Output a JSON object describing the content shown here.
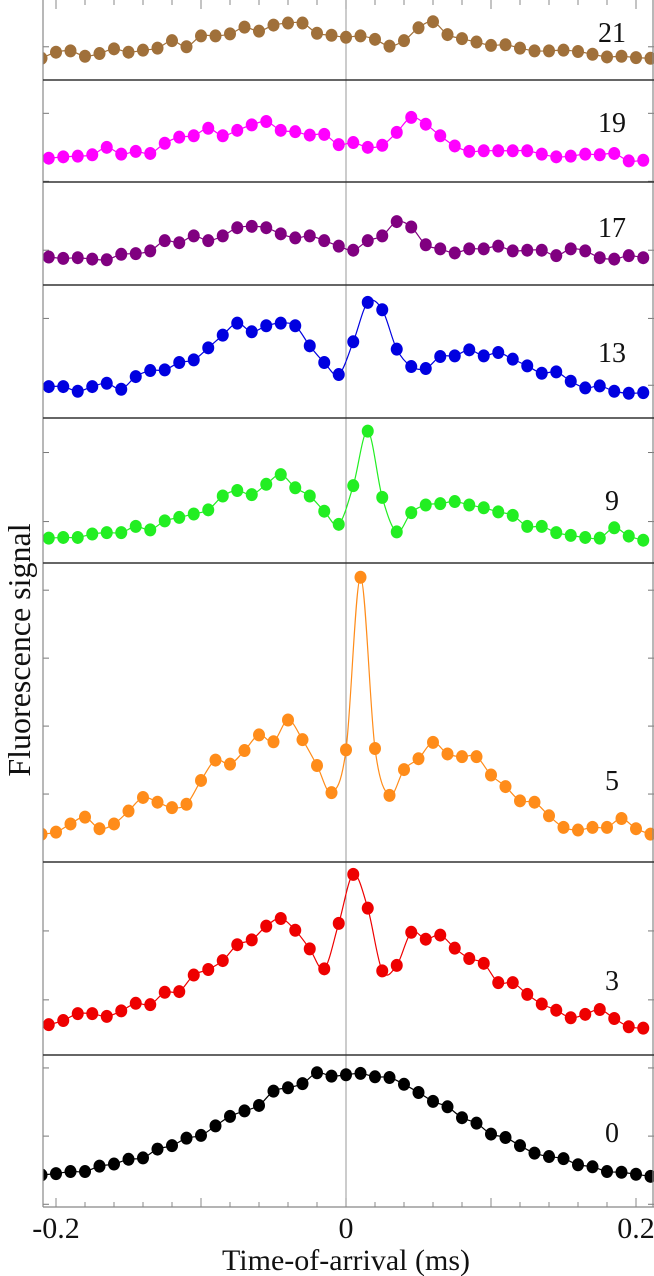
{
  "chart_data": {
    "type": "scatter",
    "xlabel": "Time-of-arrival (ms)",
    "ylabel": "Fluorescence signal",
    "xlim": [
      -0.209,
      0.212
    ],
    "xticks": [
      -0.2,
      0,
      0.2
    ],
    "xticklabels": [
      "-0.2",
      "0",
      "0.2"
    ],
    "x_minor_tick_step": 0.02,
    "zero_line": true,
    "series": [
      {
        "label": "21",
        "color": "#a0703a",
        "ylim": [
          0.51,
          1.69
        ],
        "yticks": [
          1
        ],
        "x": [
          -0.21,
          -0.2,
          -0.19,
          -0.18,
          -0.17,
          -0.16,
          -0.15,
          -0.14,
          -0.13,
          -0.12,
          -0.11,
          -0.1,
          -0.09,
          -0.08,
          -0.07,
          -0.06,
          -0.05,
          -0.04,
          -0.03,
          -0.02,
          -0.01,
          0,
          0.01,
          0.02,
          0.03,
          0.04,
          0.05,
          0.06,
          0.07,
          0.08,
          0.09,
          0.1,
          0.11,
          0.12,
          0.13,
          0.14,
          0.15,
          0.16,
          0.17,
          0.18,
          0.19,
          0.2,
          0.21
        ],
        "y": [
          0.83,
          0.92,
          0.94,
          0.86,
          0.9,
          0.97,
          0.92,
          0.95,
          0.98,
          1.09,
          1.0,
          1.16,
          1.16,
          1.19,
          1.29,
          1.23,
          1.32,
          1.35,
          1.35,
          1.2,
          1.17,
          1.14,
          1.16,
          1.11,
          1.01,
          1.09,
          1.28,
          1.37,
          1.18,
          1.12,
          1.07,
          1.02,
          1.03,
          0.98,
          0.94,
          0.94,
          0.95,
          0.93,
          0.89,
          0.85,
          0.86,
          0.84,
          0.83
        ]
      },
      {
        "label": "19",
        "color": "#ff00ff",
        "ylim": [
          -0.01,
          1.49
        ],
        "yticks": [
          0,
          1
        ],
        "x": [
          -0.205,
          -0.195,
          -0.185,
          -0.175,
          -0.165,
          -0.155,
          -0.145,
          -0.135,
          -0.125,
          -0.115,
          -0.105,
          -0.095,
          -0.085,
          -0.075,
          -0.065,
          -0.055,
          -0.045,
          -0.035,
          -0.025,
          -0.015,
          -0.005,
          0.005,
          0.015,
          0.025,
          0.035,
          0.045,
          0.055,
          0.065,
          0.075,
          0.085,
          0.095,
          0.105,
          0.115,
          0.125,
          0.135,
          0.145,
          0.155,
          0.165,
          0.175,
          0.185,
          0.195,
          0.205
        ],
        "y": [
          0.34,
          0.36,
          0.37,
          0.39,
          0.5,
          0.4,
          0.44,
          0.41,
          0.56,
          0.65,
          0.67,
          0.78,
          0.67,
          0.75,
          0.83,
          0.88,
          0.75,
          0.73,
          0.68,
          0.69,
          0.54,
          0.57,
          0.5,
          0.53,
          0.72,
          0.94,
          0.84,
          0.67,
          0.52,
          0.44,
          0.45,
          0.45,
          0.45,
          0.45,
          0.4,
          0.36,
          0.37,
          0.4,
          0.39,
          0.41,
          0.3,
          0.31
        ]
      },
      {
        "label": "17",
        "color": "#800080",
        "ylim": [
          -0.51,
          1.0
        ],
        "yticks": [
          0,
          1
        ],
        "x": [
          -0.205,
          -0.195,
          -0.185,
          -0.175,
          -0.165,
          -0.155,
          -0.145,
          -0.135,
          -0.125,
          -0.115,
          -0.105,
          -0.095,
          -0.085,
          -0.075,
          -0.065,
          -0.055,
          -0.045,
          -0.035,
          -0.025,
          -0.015,
          -0.005,
          0.005,
          0.015,
          0.025,
          0.035,
          0.045,
          0.055,
          0.065,
          0.075,
          0.085,
          0.095,
          0.105,
          0.115,
          0.125,
          0.135,
          0.145,
          0.155,
          0.165,
          0.175,
          0.185,
          0.195,
          0.205
        ],
        "y": [
          -0.1,
          -0.12,
          -0.11,
          -0.13,
          -0.14,
          -0.06,
          -0.05,
          -0.01,
          0.14,
          0.11,
          0.21,
          0.14,
          0.21,
          0.33,
          0.35,
          0.33,
          0.24,
          0.18,
          0.21,
          0.14,
          0.06,
          0.0,
          0.14,
          0.21,
          0.42,
          0.34,
          0.08,
          0.02,
          -0.04,
          0.02,
          0.02,
          0.06,
          -0.01,
          0.0,
          0.0,
          -0.08,
          0.02,
          -0.01,
          -0.11,
          -0.13,
          -0.08,
          -0.11
        ]
      },
      {
        "label": "13",
        "color": "#0000e0",
        "ylim": [
          -0.49,
          1.5
        ],
        "yticks": [
          0,
          1
        ],
        "x": [
          -0.205,
          -0.195,
          -0.185,
          -0.175,
          -0.165,
          -0.155,
          -0.145,
          -0.135,
          -0.125,
          -0.115,
          -0.105,
          -0.095,
          -0.085,
          -0.075,
          -0.065,
          -0.055,
          -0.045,
          -0.035,
          -0.025,
          -0.015,
          -0.005,
          0.005,
          0.015,
          0.025,
          0.035,
          0.045,
          0.055,
          0.065,
          0.075,
          0.085,
          0.095,
          0.105,
          0.115,
          0.125,
          0.135,
          0.145,
          0.155,
          0.165,
          0.175,
          0.185,
          0.195,
          0.205
        ],
        "y": [
          -0.02,
          -0.02,
          -0.09,
          -0.02,
          0.03,
          -0.06,
          0.13,
          0.22,
          0.23,
          0.34,
          0.38,
          0.56,
          0.75,
          0.93,
          0.8,
          0.89,
          0.93,
          0.89,
          0.59,
          0.34,
          0.16,
          0.65,
          1.24,
          1.13,
          0.54,
          0.28,
          0.25,
          0.43,
          0.44,
          0.53,
          0.44,
          0.49,
          0.39,
          0.29,
          0.18,
          0.2,
          0.06,
          -0.04,
          -0.01,
          -0.09,
          -0.12,
          -0.11
        ]
      },
      {
        "label": "9",
        "color": "#22ee22",
        "ylim": [
          -0.6,
          1.5
        ],
        "yticks": [
          0,
          1
        ],
        "x": [
          -0.205,
          -0.195,
          -0.185,
          -0.175,
          -0.165,
          -0.155,
          -0.145,
          -0.135,
          -0.125,
          -0.115,
          -0.105,
          -0.095,
          -0.085,
          -0.075,
          -0.065,
          -0.055,
          -0.045,
          -0.035,
          -0.025,
          -0.015,
          -0.005,
          0.005,
          0.015,
          0.025,
          0.035,
          0.045,
          0.055,
          0.065,
          0.075,
          0.085,
          0.095,
          0.105,
          0.115,
          0.125,
          0.135,
          0.145,
          0.155,
          0.165,
          0.175,
          0.185,
          0.195,
          0.205
        ],
        "y": [
          -0.24,
          -0.23,
          -0.23,
          -0.18,
          -0.16,
          -0.16,
          -0.07,
          -0.12,
          0.01,
          0.06,
          0.11,
          0.17,
          0.37,
          0.45,
          0.39,
          0.54,
          0.68,
          0.49,
          0.37,
          0.15,
          -0.04,
          0.52,
          1.31,
          0.35,
          -0.15,
          0.13,
          0.24,
          0.26,
          0.29,
          0.24,
          0.2,
          0.14,
          0.09,
          -0.07,
          -0.07,
          -0.16,
          -0.2,
          -0.23,
          -0.24,
          -0.09,
          -0.21,
          -0.27
        ]
      },
      {
        "label": "5",
        "color": "#ff8c1a",
        "ylim": [
          -1.0,
          3.4
        ],
        "yticks": [
          0,
          1,
          2,
          3
        ],
        "x": [
          -0.21,
          -0.2,
          -0.19,
          -0.18,
          -0.17,
          -0.16,
          -0.15,
          -0.14,
          -0.13,
          -0.12,
          -0.11,
          -0.1,
          -0.09,
          -0.08,
          -0.07,
          -0.06,
          -0.05,
          -0.04,
          -0.03,
          -0.02,
          -0.01,
          0,
          0.01,
          0.02,
          0.03,
          0.04,
          0.05,
          0.06,
          0.07,
          0.08,
          0.09,
          0.1,
          0.11,
          0.12,
          0.13,
          0.14,
          0.15,
          0.16,
          0.17,
          0.18,
          0.19,
          0.2,
          0.21
        ],
        "y": [
          -0.59,
          -0.56,
          -0.44,
          -0.34,
          -0.51,
          -0.44,
          -0.25,
          -0.05,
          -0.12,
          -0.2,
          -0.15,
          0.2,
          0.5,
          0.44,
          0.64,
          0.87,
          0.77,
          1.09,
          0.8,
          0.42,
          0.02,
          0.65,
          3.19,
          0.67,
          -0.02,
          0.36,
          0.52,
          0.76,
          0.59,
          0.55,
          0.55,
          0.28,
          0.11,
          -0.1,
          -0.12,
          -0.32,
          -0.49,
          -0.53,
          -0.49,
          -0.49,
          -0.36,
          -0.51,
          -0.59
        ]
      },
      {
        "label": "3",
        "color": "#ee0000",
        "ylim": [
          -0.8,
          2.0
        ],
        "yticks": [
          0,
          1
        ],
        "x": [
          -0.205,
          -0.195,
          -0.185,
          -0.175,
          -0.165,
          -0.155,
          -0.145,
          -0.135,
          -0.125,
          -0.115,
          -0.105,
          -0.095,
          -0.085,
          -0.075,
          -0.065,
          -0.055,
          -0.045,
          -0.035,
          -0.025,
          -0.015,
          -0.005,
          0.005,
          0.015,
          0.025,
          0.035,
          0.045,
          0.055,
          0.065,
          0.075,
          0.085,
          0.095,
          0.105,
          0.115,
          0.125,
          0.135,
          0.145,
          0.155,
          0.165,
          0.175,
          0.185,
          0.195,
          0.205
        ],
        "y": [
          -0.36,
          -0.3,
          -0.2,
          -0.2,
          -0.24,
          -0.16,
          -0.05,
          -0.07,
          0.11,
          0.12,
          0.36,
          0.44,
          0.57,
          0.8,
          0.87,
          1.07,
          1.18,
          1.01,
          0.74,
          0.45,
          1.11,
          1.82,
          1.33,
          0.42,
          0.5,
          0.98,
          0.88,
          0.94,
          0.75,
          0.6,
          0.53,
          0.25,
          0.25,
          0.08,
          -0.06,
          -0.15,
          -0.26,
          -0.21,
          -0.14,
          -0.27,
          -0.39,
          -0.41
        ]
      },
      {
        "label": "0",
        "color": "#000000",
        "ylim": [
          -0.04,
          2.19
        ],
        "yticks": [
          0,
          1,
          2
        ],
        "x": [
          -0.21,
          -0.2,
          -0.19,
          -0.18,
          -0.17,
          -0.16,
          -0.15,
          -0.14,
          -0.13,
          -0.12,
          -0.11,
          -0.1,
          -0.09,
          -0.08,
          -0.07,
          -0.06,
          -0.05,
          -0.04,
          -0.03,
          -0.02,
          -0.01,
          0,
          0.01,
          0.02,
          0.03,
          0.04,
          0.05,
          0.06,
          0.07,
          0.08,
          0.09,
          0.1,
          0.11,
          0.12,
          0.13,
          0.14,
          0.15,
          0.16,
          0.17,
          0.18,
          0.19,
          0.2,
          0.21
        ],
        "y": [
          0.43,
          0.45,
          0.48,
          0.48,
          0.56,
          0.59,
          0.66,
          0.68,
          0.81,
          0.86,
          0.97,
          1.01,
          1.15,
          1.29,
          1.37,
          1.45,
          1.66,
          1.71,
          1.77,
          1.93,
          1.88,
          1.9,
          1.92,
          1.87,
          1.86,
          1.76,
          1.64,
          1.51,
          1.43,
          1.27,
          1.19,
          1.03,
          0.98,
          0.86,
          0.75,
          0.7,
          0.67,
          0.58,
          0.55,
          0.48,
          0.47,
          0.44,
          0.41
        ]
      }
    ]
  }
}
